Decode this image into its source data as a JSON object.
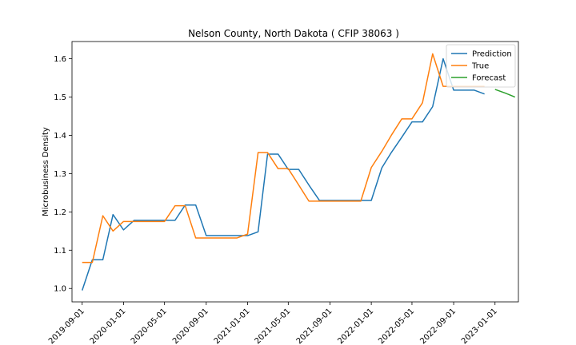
{
  "chart_data": {
    "type": "line",
    "title": "Nelson County, North Dakota ( CFIP 38063 )",
    "xlabel": "",
    "ylabel": "Microbusiness Density",
    "ylim": [
      0.965,
      1.645
    ],
    "xlim": [
      "2019-08-02",
      "2023-03-11"
    ],
    "y_ticks": [
      1.0,
      1.1,
      1.2,
      1.3,
      1.4,
      1.5,
      1.6
    ],
    "y_tick_labels": [
      "1.0",
      "1.1",
      "1.2",
      "1.3",
      "1.4",
      "1.5",
      "1.6"
    ],
    "x_ticks": [
      "2019-09-01",
      "2020-01-01",
      "2020-05-01",
      "2020-09-01",
      "2021-01-01",
      "2021-05-01",
      "2021-09-01",
      "2022-01-01",
      "2022-05-01",
      "2022-09-01",
      "2023-01-01"
    ],
    "x_tick_labels": [
      "2019-09-01",
      "2020-01-01",
      "2020-05-01",
      "2020-09-01",
      "2021-01-01",
      "2021-05-01",
      "2021-09-01",
      "2022-01-01",
      "2022-05-01",
      "2022-09-01",
      "2023-01-01"
    ],
    "grid": false,
    "legend_position": "top-right",
    "series": [
      {
        "name": "Prediction",
        "color": "#1f77b4",
        "x": [
          "2019-09-01",
          "2019-10-01",
          "2019-11-01",
          "2019-12-01",
          "2020-01-01",
          "2020-02-01",
          "2020-03-01",
          "2020-04-01",
          "2020-05-01",
          "2020-06-01",
          "2020-07-01",
          "2020-08-01",
          "2020-09-01",
          "2020-10-01",
          "2020-11-01",
          "2020-12-01",
          "2021-01-01",
          "2021-02-01",
          "2021-03-01",
          "2021-04-01",
          "2021-05-01",
          "2021-06-01",
          "2021-07-01",
          "2021-08-01",
          "2021-09-01",
          "2021-10-01",
          "2021-11-01",
          "2021-12-01",
          "2022-01-01",
          "2022-02-01",
          "2022-03-01",
          "2022-04-01",
          "2022-05-01",
          "2022-06-01",
          "2022-07-01",
          "2022-08-01",
          "2022-09-01",
          "2022-10-01",
          "2022-11-01",
          "2022-12-01"
        ],
        "y": [
          0.995,
          1.075,
          1.075,
          1.193,
          1.153,
          1.178,
          1.178,
          1.178,
          1.178,
          1.178,
          1.218,
          1.218,
          1.138,
          1.138,
          1.138,
          1.138,
          1.138,
          1.148,
          1.351,
          1.351,
          1.311,
          1.311,
          1.27,
          1.23,
          1.23,
          1.23,
          1.23,
          1.23,
          1.23,
          1.315,
          1.355,
          1.395,
          1.435,
          1.435,
          1.475,
          1.6,
          1.518,
          1.518,
          1.518,
          1.508
        ]
      },
      {
        "name": "True",
        "color": "#ff7f0e",
        "x": [
          "2019-09-01",
          "2019-10-01",
          "2019-11-01",
          "2019-12-01",
          "2020-01-01",
          "2020-02-01",
          "2020-03-01",
          "2020-04-01",
          "2020-05-01",
          "2020-06-01",
          "2020-07-01",
          "2020-08-01",
          "2020-09-01",
          "2020-10-01",
          "2020-11-01",
          "2020-12-01",
          "2021-01-01",
          "2021-02-01",
          "2021-03-01",
          "2021-04-01",
          "2021-05-01",
          "2021-06-01",
          "2021-07-01",
          "2021-08-01",
          "2021-09-01",
          "2021-10-01",
          "2021-11-01",
          "2021-12-01",
          "2022-01-01",
          "2022-02-01",
          "2022-03-01",
          "2022-04-01",
          "2022-05-01",
          "2022-06-01",
          "2022-07-01",
          "2022-08-01",
          "2022-09-01",
          "2022-10-01",
          "2022-11-01",
          "2022-12-01"
        ],
        "y": [
          1.068,
          1.068,
          1.19,
          1.15,
          1.175,
          1.175,
          1.175,
          1.175,
          1.175,
          1.216,
          1.216,
          1.132,
          1.132,
          1.132,
          1.132,
          1.132,
          1.142,
          1.355,
          1.355,
          1.313,
          1.313,
          1.27,
          1.228,
          1.228,
          1.228,
          1.228,
          1.228,
          1.228,
          1.316,
          1.358,
          1.4,
          1.443,
          1.443,
          1.485,
          1.613,
          1.528,
          1.528,
          1.528,
          1.528,
          1.528
        ]
      },
      {
        "name": "Forecast",
        "color": "#2ca02c",
        "x": [
          "2023-01-01",
          "2023-02-01",
          "2023-03-01"
        ],
        "y": [
          1.52,
          1.51,
          1.5
        ]
      }
    ]
  }
}
